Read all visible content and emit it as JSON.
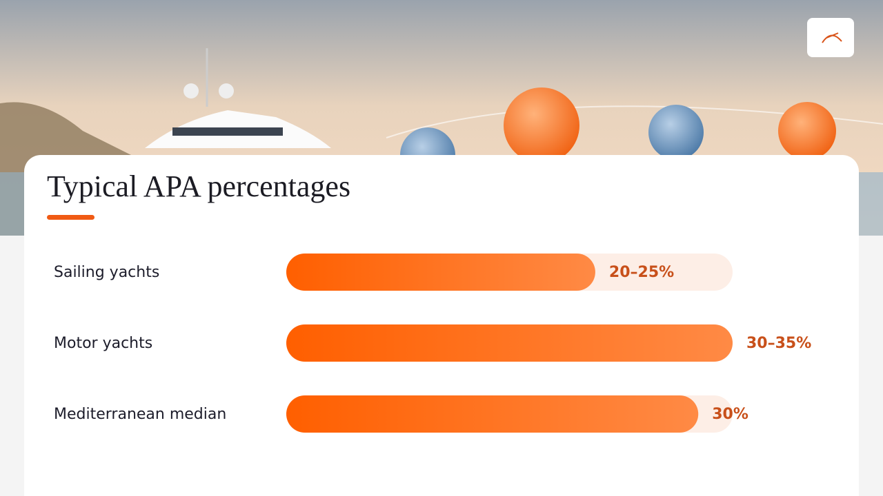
{
  "chart_data": {
    "type": "bar",
    "orientation": "horizontal",
    "title": "Typical APA percentages",
    "categories": [
      "Sailing yachts",
      "Motor yachts",
      "Mediterranean median"
    ],
    "values": [
      22.5,
      32.5,
      30
    ],
    "value_labels": [
      "20–25%",
      "30–35%",
      "30%"
    ],
    "xlim": [
      0,
      32.5
    ]
  }
}
